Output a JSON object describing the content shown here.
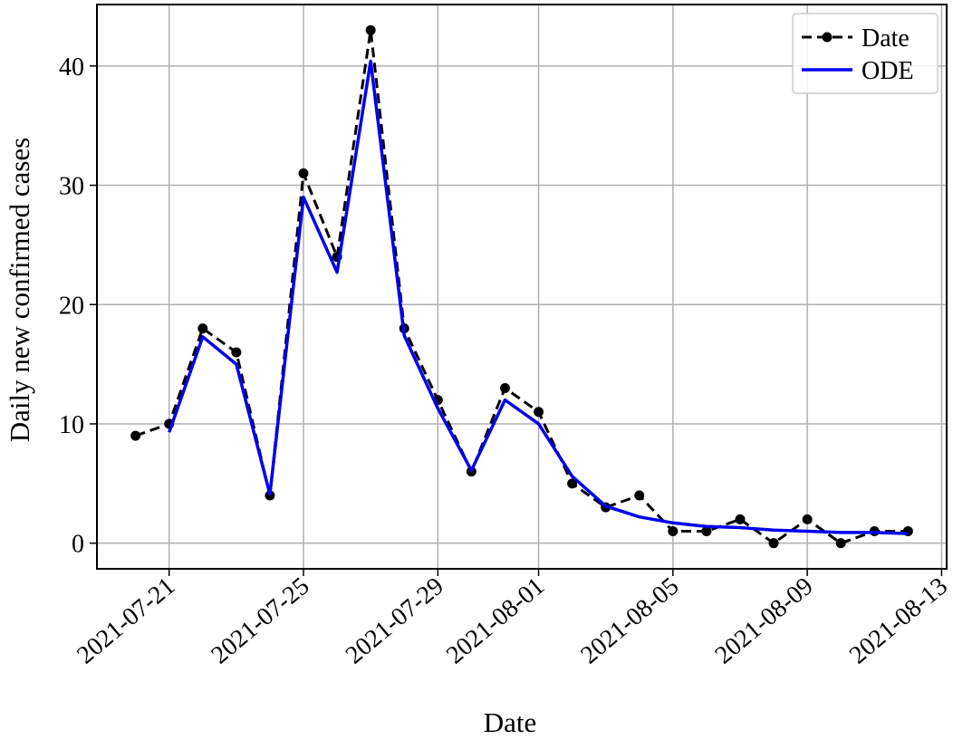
{
  "chart_data": {
    "type": "line",
    "xlabel": "Date",
    "ylabel": "Daily new confirmed cases",
    "x": [
      "2021-07-20",
      "2021-07-21",
      "2021-07-22",
      "2021-07-23",
      "2021-07-24",
      "2021-07-25",
      "2021-07-26",
      "2021-07-27",
      "2021-07-28",
      "2021-07-29",
      "2021-07-30",
      "2021-07-31",
      "2021-08-01",
      "2021-08-02",
      "2021-08-03",
      "2021-08-04",
      "2021-08-05",
      "2021-08-06",
      "2021-08-07",
      "2021-08-08",
      "2021-08-09",
      "2021-08-10",
      "2021-08-11",
      "2021-08-12"
    ],
    "series": [
      {
        "name": "Date",
        "color": "#000000",
        "dashed": true,
        "marker": true,
        "values": [
          9,
          10,
          18,
          16,
          4,
          31,
          24,
          43,
          18,
          12,
          6,
          13,
          11,
          5,
          3,
          4,
          1,
          1,
          2,
          0,
          2,
          0,
          1,
          1
        ]
      },
      {
        "name": "ODE",
        "color": "#0000ee",
        "dashed": false,
        "marker": false,
        "values": [
          null,
          9.3,
          17.3,
          15.0,
          4.1,
          29.0,
          22.7,
          40.4,
          17.4,
          11.3,
          6.1,
          12.0,
          10.0,
          5.6,
          3.1,
          2.2,
          1.7,
          1.4,
          1.3,
          1.1,
          1.0,
          0.9,
          0.9,
          0.8
        ]
      }
    ],
    "xlim": [
      "2021-07-18T20:24",
      "2021-08-13T03:36"
    ],
    "xticks": [
      "2021-07-21",
      "2021-07-25",
      "2021-07-29",
      "2021-08-01",
      "2021-08-05",
      "2021-08-09",
      "2021-08-13"
    ],
    "ylim": [
      -2.15,
      45.15
    ],
    "yticks": [
      0,
      10,
      20,
      30,
      40
    ],
    "grid": true,
    "legend": "upper right"
  }
}
